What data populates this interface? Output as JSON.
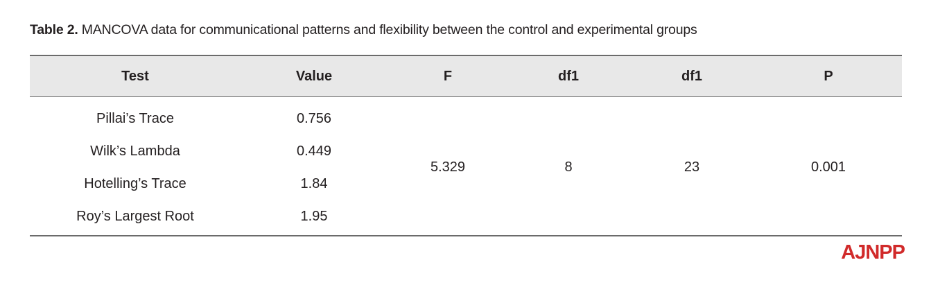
{
  "caption": {
    "label": "Table 2.",
    "text": "MANCOVA data for communicational patterns and flexibility between the control and experimental groups"
  },
  "table": {
    "headers": [
      "Test",
      "Value",
      "F",
      "df1",
      "df1",
      "P"
    ],
    "tests": [
      {
        "name": "Pillai’s Trace",
        "value": "0.756"
      },
      {
        "name": "Wilk’s Lambda",
        "value": "0.449"
      },
      {
        "name": "Hotelling’s Trace",
        "value": "1.84"
      },
      {
        "name": "Roy’s Largest Root",
        "value": "1.95"
      }
    ],
    "shared": {
      "F": "5.329",
      "df1_a": "8",
      "df1_b": "23",
      "P": "0.001"
    }
  },
  "logo": {
    "text": "AJNPP",
    "color": "#d12a2a"
  }
}
